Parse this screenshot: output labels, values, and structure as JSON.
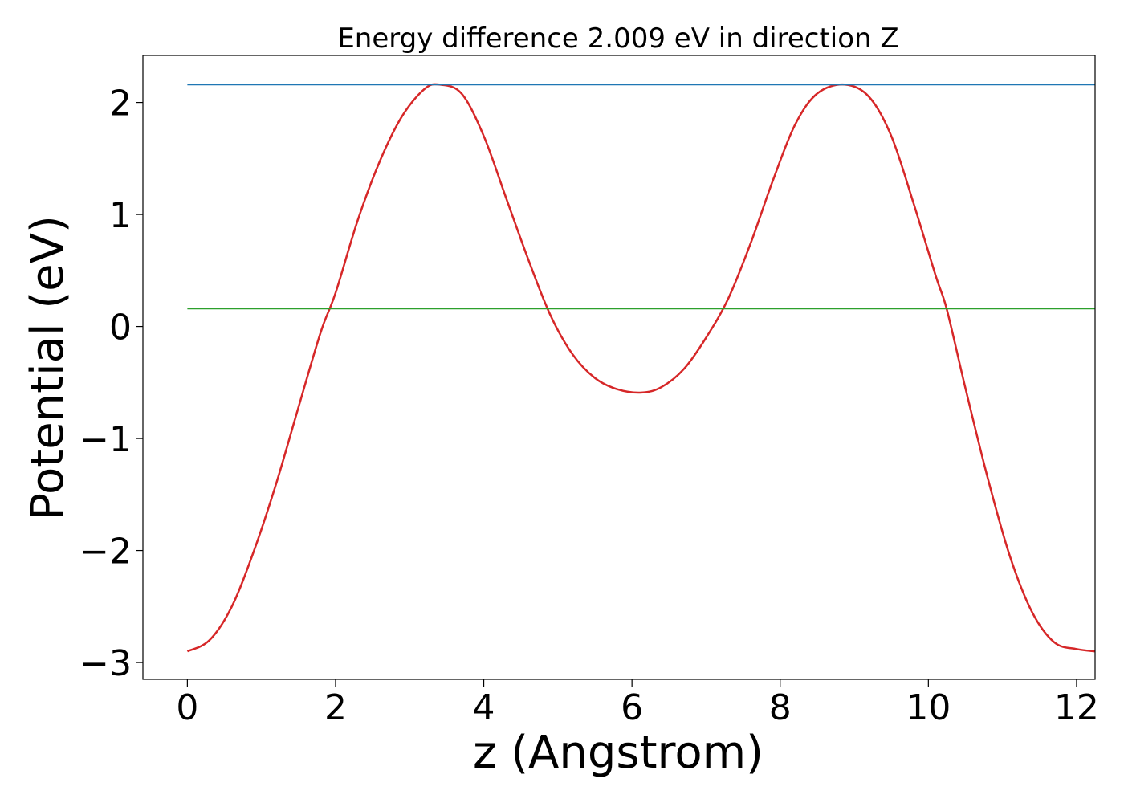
{
  "chart_data": {
    "type": "line",
    "title": "Energy difference 2.009 eV in direction Z",
    "xlabel": "z (Angstrom)",
    "ylabel": "Potential (eV)",
    "xlim": [
      -0.6,
      12.25
    ],
    "ylim": [
      -3.15,
      2.42
    ],
    "xticks": [
      0,
      2,
      4,
      6,
      8,
      10,
      12
    ],
    "xtick_labels": [
      "0",
      "2",
      "4",
      "6",
      "8",
      "10",
      "12"
    ],
    "yticks": [
      2,
      1,
      0,
      -1,
      -2,
      -3
    ],
    "ytick_labels": [
      "2",
      "1",
      "0",
      "−1",
      "−2",
      "−3"
    ],
    "grid": false,
    "legend": "none",
    "series": [
      {
        "color": "#d62728",
        "x": [
          0.0,
          0.3,
          0.6,
          0.9,
          1.2,
          1.5,
          1.8,
          2.0,
          2.3,
          2.6,
          2.9,
          3.2,
          3.4,
          3.7,
          4.0,
          4.3,
          4.6,
          4.9,
          5.2,
          5.5,
          5.8,
          6.13,
          6.4,
          6.7,
          7.0,
          7.3,
          7.6,
          7.9,
          8.2,
          8.5,
          8.87,
          9.2,
          9.5,
          9.8,
          10.1,
          10.25,
          10.5,
          10.8,
          11.1,
          11.4,
          11.7,
          12.0,
          12.25
        ],
        "y": [
          -2.9,
          -2.8,
          -2.5,
          -2.0,
          -1.4,
          -0.72,
          -0.05,
          0.3,
          0.95,
          1.48,
          1.88,
          2.12,
          2.16,
          2.08,
          1.7,
          1.15,
          0.6,
          0.1,
          -0.25,
          -0.46,
          -0.56,
          -0.59,
          -0.54,
          -0.38,
          -0.1,
          0.25,
          0.74,
          1.3,
          1.8,
          2.08,
          2.16,
          2.05,
          1.7,
          1.1,
          0.45,
          0.15,
          -0.55,
          -1.35,
          -2.05,
          -2.55,
          -2.82,
          -2.88,
          -2.9
        ]
      },
      {
        "color": "#1f77b4",
        "x": [
          0.0,
          12.25
        ],
        "y": [
          2.16,
          2.16
        ]
      },
      {
        "color": "#2ca02c",
        "x": [
          0.0,
          12.25
        ],
        "y": [
          0.16,
          0.16
        ]
      }
    ]
  }
}
